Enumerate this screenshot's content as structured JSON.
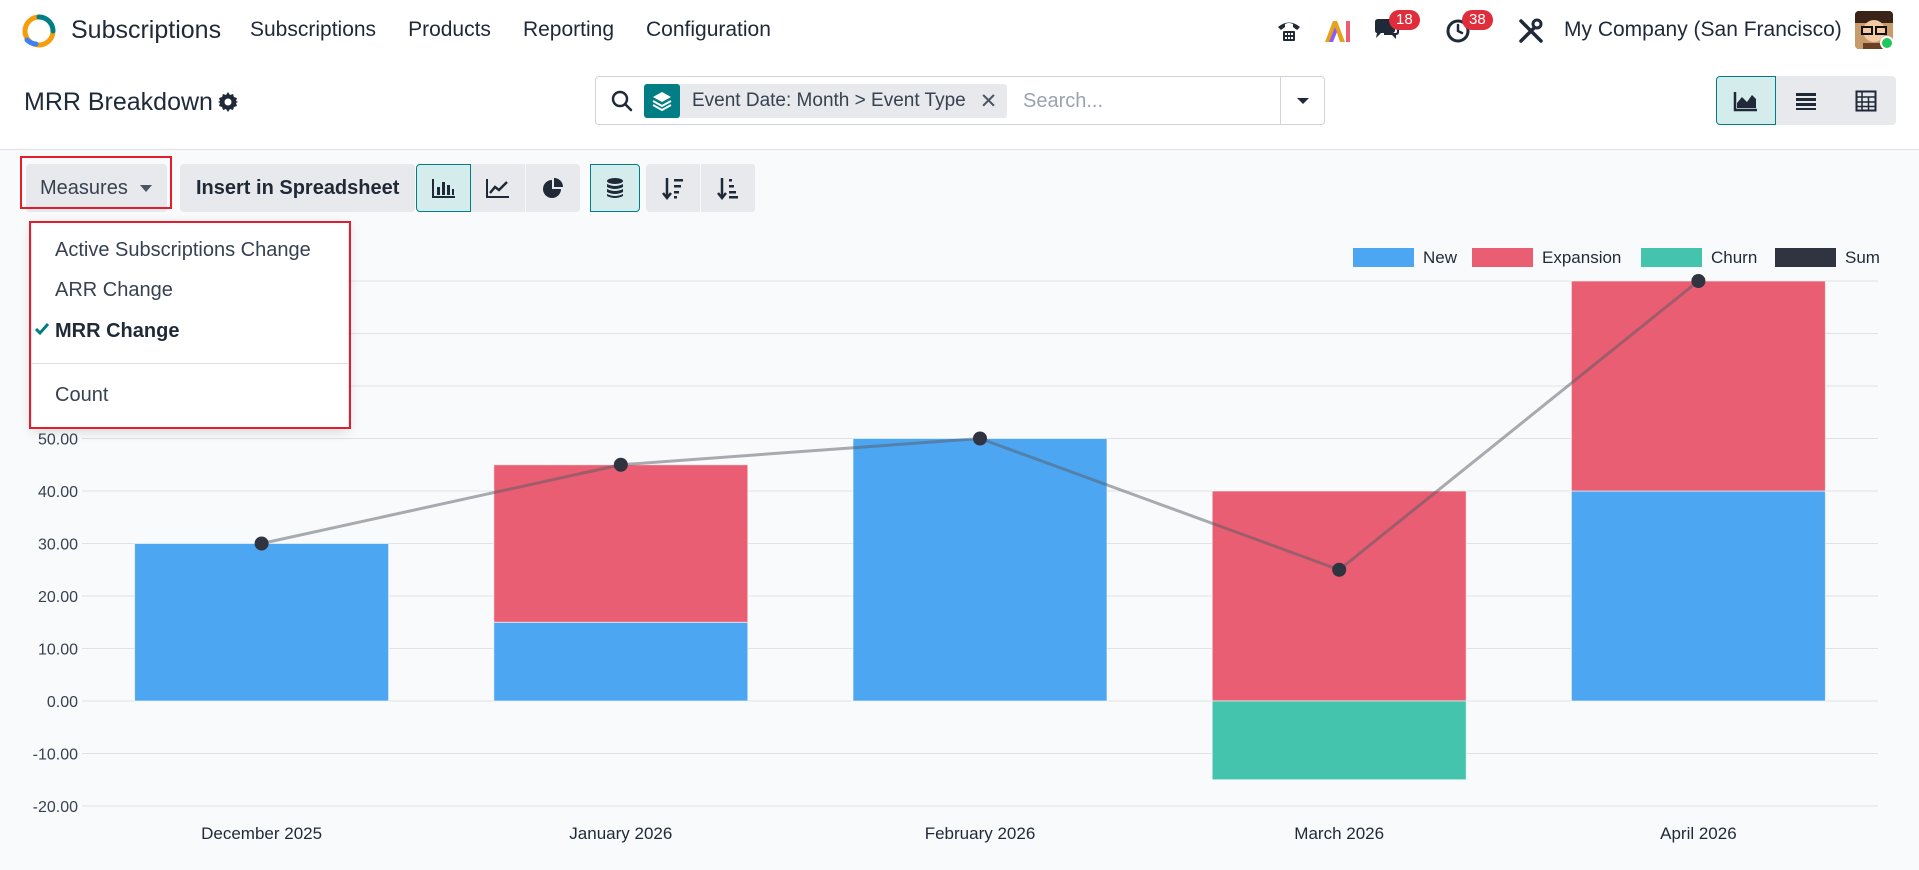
{
  "navbar": {
    "app_name": "Subscriptions",
    "menu": [
      "Subscriptions",
      "Products",
      "Reporting",
      "Configuration"
    ],
    "icons": [
      "phone-icon",
      "ai-icon",
      "chat-icon",
      "activity-clock-icon",
      "tools-icon"
    ],
    "chat_badge": "18",
    "activity_badge": "38",
    "company": "My Company (San Francisco)"
  },
  "control": {
    "title": "MRR Breakdown",
    "facet": "Event Date: Month > Event Type",
    "search_placeholder": "Search...",
    "views": [
      "graph-view-icon",
      "list-view-icon",
      "pivot-view-icon"
    ]
  },
  "toolbar": {
    "measures_label": "Measures",
    "insert_label": "Insert in Spreadsheet",
    "chart_buttons": [
      "bar-chart-icon",
      "line-chart-icon",
      "pie-chart-icon"
    ],
    "extra_buttons": [
      "stacked-icon",
      "sort-descending-icon",
      "sort-ascending-icon"
    ]
  },
  "measures_dropdown": {
    "items": [
      "Active Subscriptions Change",
      "ARR Change",
      "MRR Change"
    ],
    "checked_item": "MRR Change",
    "extra_item": "Count"
  },
  "colors": {
    "new": "#4da6f2",
    "expansion": "#e95e72",
    "churn": "#44c4ad",
    "sum": "#2f3440",
    "accent": "#017e84"
  },
  "chart_data": {
    "type": "bar",
    "stacked": true,
    "categories": [
      "December 2025",
      "January 2026",
      "February 2026",
      "March 2026",
      "April 2026"
    ],
    "series": [
      {
        "name": "New",
        "values": [
          30,
          15,
          50,
          0,
          40
        ]
      },
      {
        "name": "Expansion",
        "values": [
          0,
          30,
          0,
          40,
          40
        ]
      },
      {
        "name": "Churn",
        "values": [
          0,
          0,
          0,
          -15,
          0
        ]
      },
      {
        "name": "Sum",
        "type": "line",
        "values": [
          30,
          45,
          50,
          25,
          80
        ]
      }
    ],
    "y_tick_labels": [
      "50.00",
      "40.00",
      "30.00",
      "20.00",
      "10.00",
      "0.00",
      "-10.00",
      "-20.00"
    ],
    "ylim": [
      -20,
      80
    ],
    "legend": "top-right",
    "grid": true
  }
}
